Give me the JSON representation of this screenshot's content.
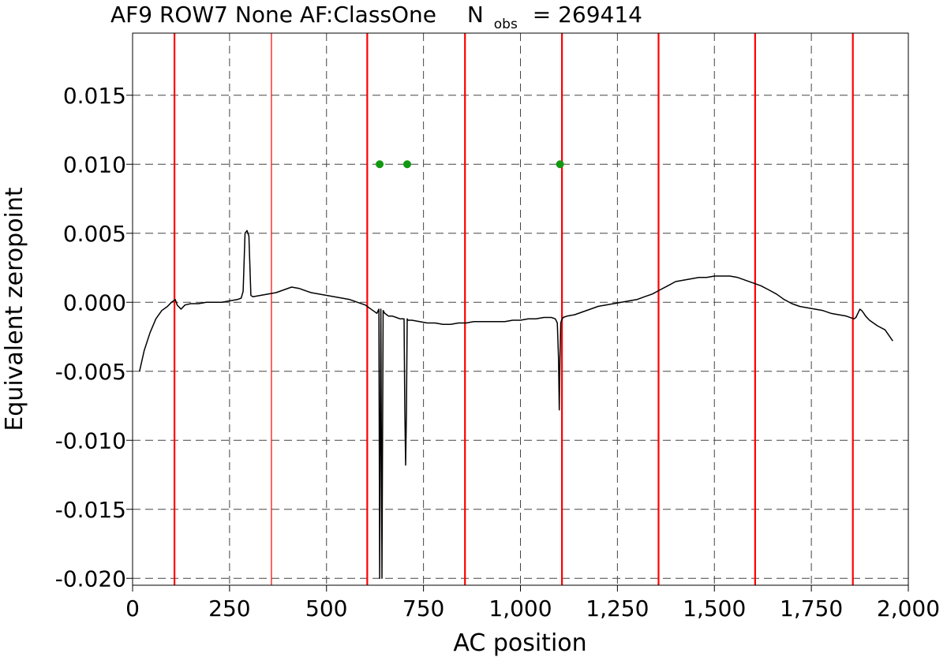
{
  "chart_data": {
    "type": "line",
    "title": {
      "main": "AF9 ROW7 None AF:ClassOne",
      "n_symbol": "N",
      "n_subscript": "obs",
      "n_equals": "= 269414"
    },
    "xlabel": "AC position",
    "ylabel": "Equivalent zeropoint",
    "xlim": [
      0,
      2000
    ],
    "ylim": [
      -0.0205,
      0.0195
    ],
    "x_ticks": [
      0,
      250,
      500,
      750,
      1000,
      1250,
      1500,
      1750,
      2000
    ],
    "x_tick_labels": [
      "0",
      "250",
      "500",
      "750",
      "1,000",
      "1,250",
      "1,500",
      "1,750",
      "2,000"
    ],
    "y_ticks": [
      0.015,
      0.01,
      0.005,
      0.0,
      -0.005,
      -0.01,
      -0.015,
      -0.02
    ],
    "y_tick_labels": [
      "0.015",
      "0.010",
      "0.005",
      "0.000",
      "-0.005",
      "-0.010",
      "-0.015",
      "-0.020"
    ],
    "grid": true,
    "series": [
      {
        "color": "#000000",
        "x": [
          18,
          30,
          45,
          60,
          75,
          90,
          100,
          110,
          115,
          125,
          135,
          150,
          170,
          190,
          210,
          230,
          250,
          270,
          280,
          285,
          290,
          295,
          300,
          305,
          310,
          330,
          350,
          370,
          390,
          410,
          430,
          450,
          460,
          480,
          500,
          520,
          540,
          560,
          580,
          600,
          610,
          620,
          630,
          635,
          637,
          640,
          643,
          646,
          648,
          650,
          655,
          660,
          670,
          680,
          690,
          700,
          702,
          704,
          706,
          708,
          710,
          715,
          720,
          740,
          760,
          780,
          800,
          820,
          840,
          860,
          880,
          900,
          920,
          940,
          960,
          980,
          1000,
          1020,
          1040,
          1060,
          1080,
          1090,
          1095,
          1098,
          1100,
          1102,
          1104,
          1106,
          1108,
          1110,
          1120,
          1140,
          1160,
          1180,
          1200,
          1220,
          1240,
          1260,
          1280,
          1300,
          1320,
          1340,
          1360,
          1380,
          1400,
          1420,
          1440,
          1460,
          1480,
          1500,
          1520,
          1540,
          1560,
          1580,
          1600,
          1620,
          1640,
          1660,
          1680,
          1700,
          1720,
          1740,
          1760,
          1780,
          1800,
          1820,
          1840,
          1860,
          1865,
          1870,
          1875,
          1880,
          1885,
          1890,
          1900,
          1920,
          1940,
          1960
        ],
        "y": [
          -0.005,
          -0.0035,
          -0.0022,
          -0.0012,
          -0.0006,
          -0.0003,
          0.0,
          0.0002,
          -0.0002,
          -0.0005,
          -0.0002,
          -0.0001,
          -0.0001,
          0.0,
          0.0,
          0.0,
          0.0001,
          0.0002,
          0.0003,
          0.0008,
          0.005,
          0.0052,
          0.0048,
          0.0005,
          0.0004,
          0.0005,
          0.0006,
          0.0007,
          0.0009,
          0.0011,
          0.001,
          0.0008,
          0.0007,
          0.0006,
          0.0005,
          0.0004,
          0.0003,
          0.0002,
          0.0,
          -0.0002,
          -0.0004,
          -0.0006,
          -0.0008,
          -0.0005,
          -0.02,
          -0.0005,
          -0.02,
          -0.0006,
          -0.0007,
          -0.0008,
          -0.0009,
          -0.001,
          -0.001,
          -0.0011,
          -0.0012,
          -0.0012,
          -0.008,
          -0.0118,
          -0.008,
          -0.0012,
          -0.0013,
          -0.0013,
          -0.0013,
          -0.0014,
          -0.0015,
          -0.0015,
          -0.0016,
          -0.0016,
          -0.0015,
          -0.0015,
          -0.0014,
          -0.0014,
          -0.0014,
          -0.0014,
          -0.0014,
          -0.0013,
          -0.0013,
          -0.0012,
          -0.0012,
          -0.0011,
          -0.0011,
          -0.0012,
          -0.0015,
          -0.004,
          -0.0078,
          -0.004,
          -0.0015,
          -0.0013,
          -0.0012,
          -0.0011,
          -0.001,
          -0.0009,
          -0.0007,
          -0.0005,
          -0.0003,
          -0.0002,
          -0.0001,
          0.0,
          0.0001,
          0.0002,
          0.0004,
          0.0006,
          0.0009,
          0.0012,
          0.0015,
          0.0016,
          0.0017,
          0.0018,
          0.0018,
          0.0019,
          0.0019,
          0.0019,
          0.0018,
          0.0016,
          0.0014,
          0.0012,
          0.0009,
          0.0006,
          0.0002,
          -0.0001,
          -0.0003,
          -0.0004,
          -0.0005,
          -0.0006,
          -0.0008,
          -0.0009,
          -0.001,
          -0.0012,
          -0.0011,
          -0.0008,
          -0.0005,
          -0.0006,
          -0.0008,
          -0.001,
          -0.0013,
          -0.0017,
          -0.002,
          -0.0028
        ]
      },
      {
        "color": "#119911",
        "mode": "markers",
        "x": [
          637,
          708,
          1102
        ],
        "y": [
          0.01,
          0.01,
          0.01
        ]
      }
    ],
    "vertical_lines": {
      "color": "#ff0000",
      "x": [
        108,
        358,
        605,
        857,
        1107,
        1356,
        1605,
        1857
      ]
    }
  }
}
